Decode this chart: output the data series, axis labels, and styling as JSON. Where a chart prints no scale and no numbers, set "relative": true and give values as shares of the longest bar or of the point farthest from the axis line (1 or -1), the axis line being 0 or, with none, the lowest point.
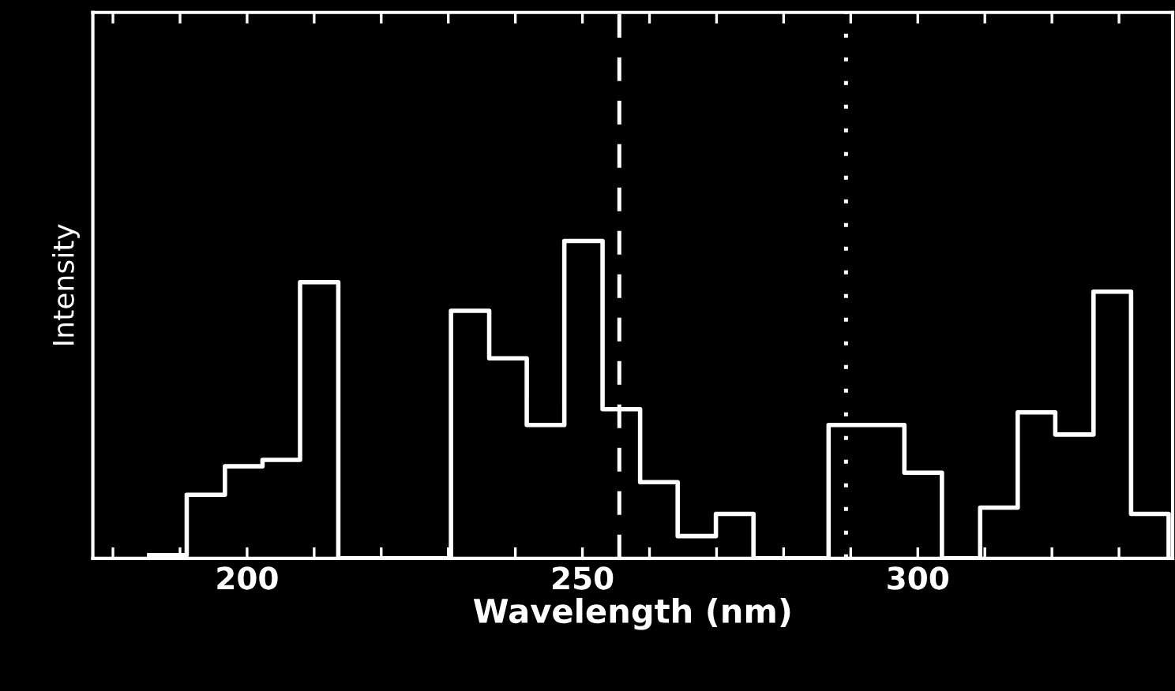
{
  "chart_data": {
    "type": "step",
    "xlabel": "Wavelength (nm)",
    "ylabel": "Intensity",
    "relative": true,
    "tick_labels": "x",
    "color": "#ffffff",
    "x": [
      185.4,
      191.0,
      196.7,
      202.3,
      207.9,
      213.6,
      219.2,
      224.8,
      230.4,
      236.1,
      241.7,
      247.3,
      253.0,
      258.6,
      264.2,
      269.9,
      275.5,
      281.1,
      286.7,
      292.4,
      298.0,
      303.6,
      309.3,
      314.9,
      320.5,
      326.2,
      331.8,
      337.4
    ],
    "values": [
      0.01,
      0.2,
      0.29,
      0.31,
      0.87,
      0,
      0,
      0,
      0.78,
      0.63,
      0.42,
      1.0,
      0.47,
      0.24,
      0.07,
      0.14,
      0,
      0,
      0.42,
      0.42,
      0.27,
      0,
      0.16,
      0.46,
      0.39,
      0.84,
      0.14,
      0
    ],
    "xlim": [
      177,
      338
    ],
    "xticks": [
      200,
      250,
      300
    ],
    "ref_lines": [
      {
        "axis": "x",
        "value": 255.5,
        "line_style": "dashed",
        "color": "#ffffff"
      },
      {
        "axis": "x",
        "value": 289.3,
        "line_style": "dotted",
        "color": "#ffffff"
      }
    ]
  }
}
